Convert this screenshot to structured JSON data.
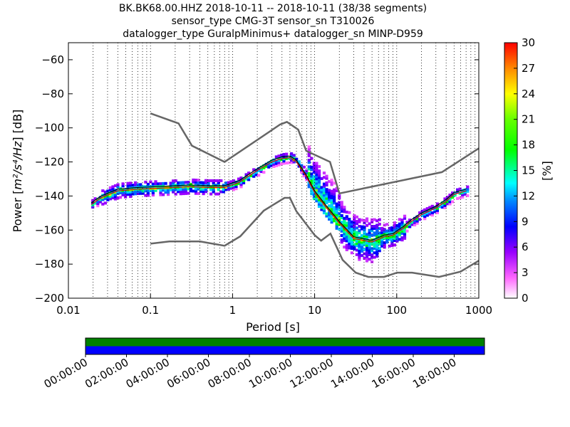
{
  "chart_data": [
    {
      "type": "heatmap",
      "title_lines": [
        "BK.BK68.00.HHZ   2018-10-11 -- 2018-10-11  (38/38 segments)",
        "sensor_type CMG-3T sensor_sn T310026",
        "datalogger_type GuralpMinimus+ datalogger_sn MINP-D959"
      ],
      "xlabel": "Period [s]",
      "ylabel": "Power [m²/s⁴/Hz] [dB]",
      "ylabel_parts": {
        "prefix": "Power [",
        "expr": "m²/s⁴/Hz",
        "suffix": "] [dB]"
      },
      "x_scale": "log",
      "xlim": [
        0.01,
        1000
      ],
      "ylim": [
        -200,
        -50
      ],
      "x_ticks": [
        {
          "value": 0.01,
          "label": "0.01"
        },
        {
          "value": 0.1,
          "label": "0.1"
        },
        {
          "value": 1,
          "label": "1"
        },
        {
          "value": 10,
          "label": "10"
        },
        {
          "value": 100,
          "label": "100"
        },
        {
          "value": 1000,
          "label": "1000"
        }
      ],
      "y_ticks": [
        {
          "value": -60,
          "label": "−60"
        },
        {
          "value": -80,
          "label": "−80"
        },
        {
          "value": -100,
          "label": "−100"
        },
        {
          "value": -120,
          "label": "−120"
        },
        {
          "value": -140,
          "label": "−140"
        },
        {
          "value": -160,
          "label": "−160"
        },
        {
          "value": -180,
          "label": "−180"
        },
        {
          "value": -200,
          "label": "−200"
        }
      ],
      "grid": "dotted vertical",
      "colorbar": {
        "label": "[%]",
        "range": [
          0,
          30
        ],
        "ticks": [
          "0",
          "3",
          "6",
          "9",
          "12",
          "15",
          "18",
          "21",
          "24",
          "27",
          "30"
        ],
        "placement": "right"
      },
      "series": [
        {
          "role": "high-noise-model",
          "color": "#666666",
          "x": [
            0.1,
            0.22,
            0.32,
            0.8,
            3.8,
            4.6,
            6.3,
            7.9,
            15.4,
            20,
            354.8,
            1000
          ],
          "y": [
            -91.5,
            -97.4,
            -110.5,
            -120,
            -98,
            -96.5,
            -101,
            -113.5,
            -120,
            -138.5,
            -126,
            -112
          ]
        },
        {
          "role": "low-noise-model",
          "color": "#666666",
          "x": [
            0.1,
            0.17,
            0.4,
            0.8,
            1.24,
            2.4,
            4.3,
            5,
            6,
            10,
            12,
            15.6,
            21.9,
            31.6,
            45,
            70,
            101,
            154,
            328,
            600,
            1000
          ],
          "y": [
            -168,
            -166.7,
            -166.7,
            -169.2,
            -163.7,
            -148.6,
            -141.1,
            -141.1,
            -149,
            -163,
            -166.2,
            -162.1,
            -177.5,
            -185,
            -187.5,
            -187.5,
            -185,
            -185,
            -187.5,
            -184.4,
            -178
          ]
        },
        {
          "role": "mode",
          "color": "#000000",
          "x": [
            0.019,
            0.025,
            0.04,
            0.07,
            0.12,
            0.2,
            0.3,
            0.5,
            0.8,
            1.2,
            2,
            3,
            4,
            5,
            6,
            8,
            10,
            14,
            20,
            30,
            50,
            70,
            90,
            120,
            150,
            200,
            300,
            400,
            500,
            700
          ],
          "y": [
            -144,
            -140,
            -136,
            -135,
            -134.5,
            -134,
            -133.5,
            -134,
            -134,
            -131,
            -124,
            -119,
            -117,
            -116.5,
            -119,
            -128,
            -137,
            -146,
            -155,
            -164,
            -166,
            -163,
            -162,
            -158,
            -154,
            -150,
            -146,
            -142,
            -138,
            -136
          ]
        },
        {
          "role": "mean",
          "color": "#d40000",
          "x": [
            0.019,
            0.025,
            0.04,
            0.07,
            0.12,
            0.2,
            0.3,
            0.5,
            0.8,
            1.2,
            2,
            3,
            4,
            5,
            6,
            8,
            10,
            14,
            20,
            30,
            50,
            70,
            90,
            120,
            150,
            200,
            300,
            400,
            500,
            700
          ],
          "y": [
            -145,
            -141,
            -137,
            -136,
            -135.5,
            -135,
            -134.5,
            -135,
            -135,
            -132,
            -125,
            -120,
            -118,
            -117.5,
            -120,
            -129,
            -138,
            -147,
            -156,
            -165,
            -167,
            -164,
            -163,
            -159,
            -155,
            -151,
            -147,
            -143,
            -139,
            -137
          ]
        }
      ]
    },
    {
      "type": "bar",
      "role": "data-availability",
      "x_ticks": [
        "00:00:00",
        "02:00:00",
        "04:00:00",
        "06:00:00",
        "08:00:00",
        "10:00:00",
        "12:00:00",
        "14:00:00",
        "16:00:00",
        "18:00:00"
      ],
      "rows": [
        {
          "name": "top",
          "color": "#008000"
        },
        {
          "name": "bottom",
          "color": "#0000ff"
        }
      ]
    }
  ]
}
